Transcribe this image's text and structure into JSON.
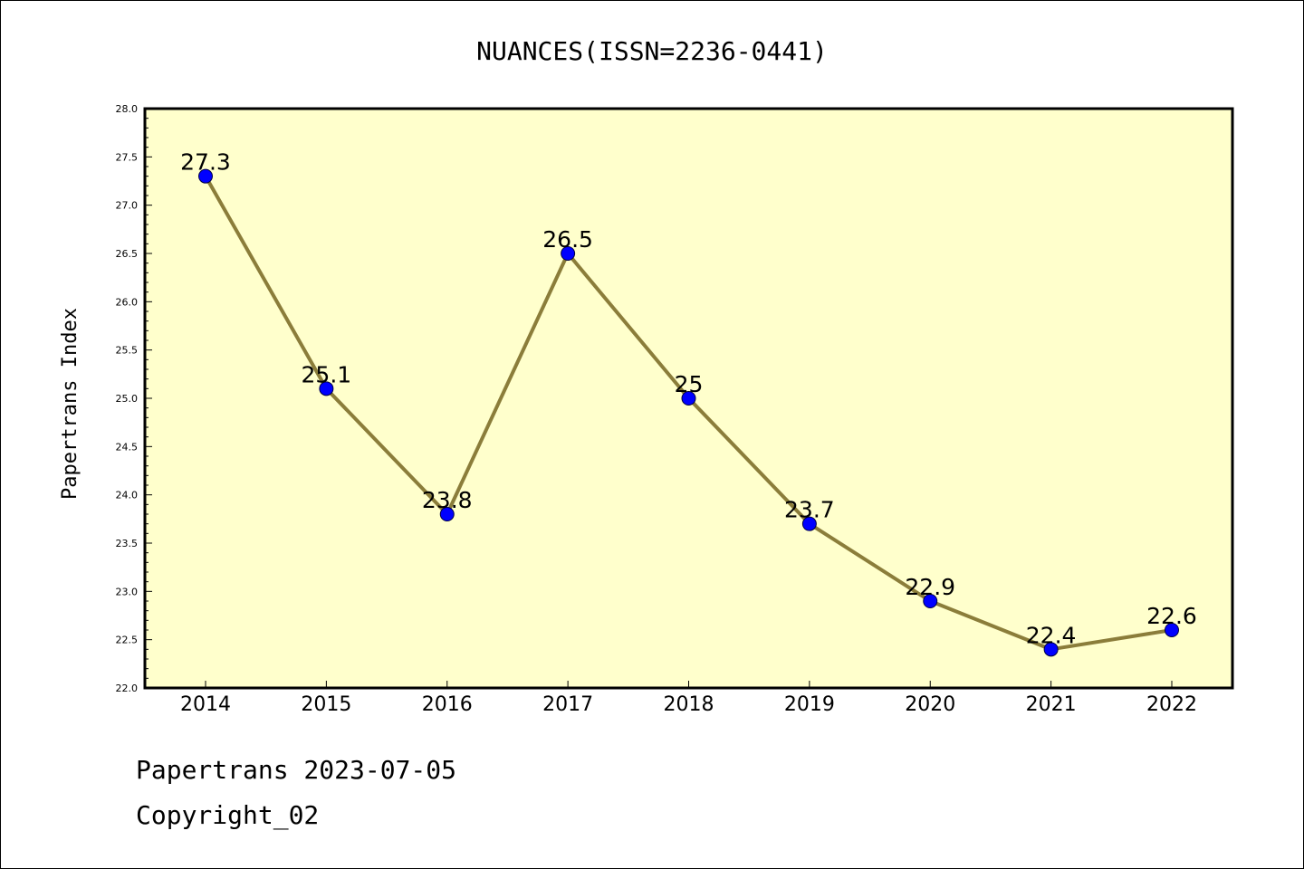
{
  "chart_data": {
    "type": "line",
    "title": "NUANCES(ISSN=2236-0441)",
    "xlabel": "",
    "ylabel": "Papertrans Index",
    "categories": [
      "2014",
      "2015",
      "2016",
      "2017",
      "2018",
      "2019",
      "2020",
      "2021",
      "2022"
    ],
    "series": [
      {
        "values": [
          27.3,
          25.1,
          23.8,
          26.5,
          25.0,
          23.7,
          22.9,
          22.4,
          22.6
        ],
        "data_labels": [
          "27.3",
          "25.1",
          "23.8",
          "26.5",
          "25",
          "23.7",
          "22.9",
          "22.4",
          "22.6"
        ],
        "line_color": "#8b7d3a",
        "marker_color": "#0000ff"
      }
    ],
    "ylim": [
      22.0,
      28.0
    ],
    "y_ticks": [
      "22.0",
      "22.5",
      "23.0",
      "23.5",
      "24.0",
      "24.5",
      "25.0",
      "25.5",
      "26.0",
      "26.5",
      "27.0",
      "27.5",
      "28.0"
    ],
    "plot_background": "#ffffcc",
    "grid": false,
    "legend": "none"
  },
  "footer": {
    "line1": "Papertrans 2023-07-05",
    "line2": "Copyright_02"
  }
}
